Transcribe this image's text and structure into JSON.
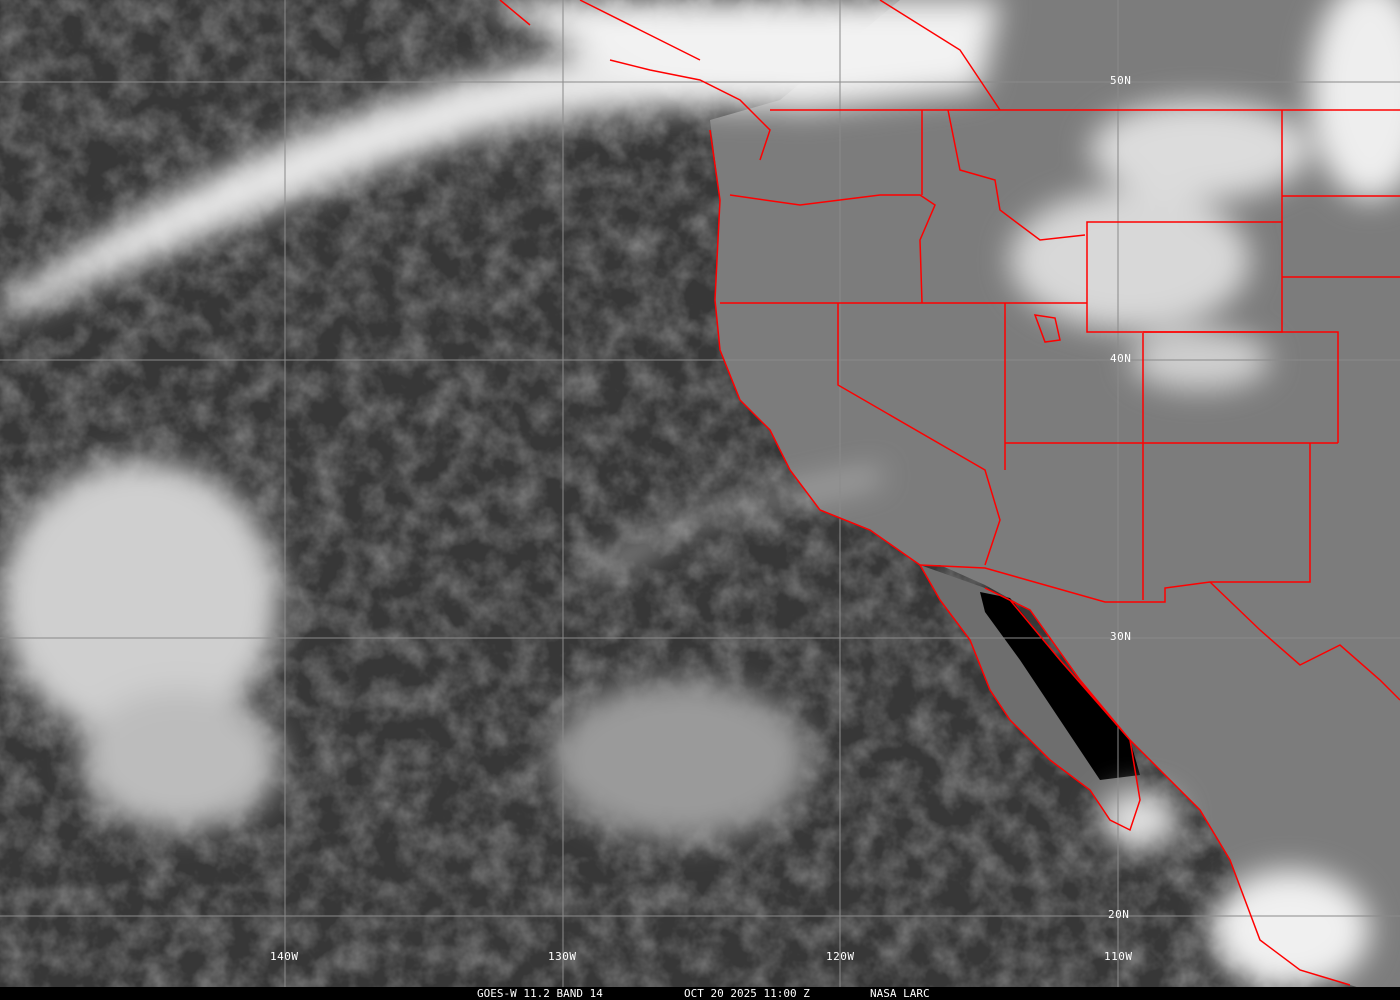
{
  "caption": {
    "satellite": "GOES-W 11.2 BAND 14",
    "datetime": "OCT 20 2025 11:00 Z",
    "source": "NASA LARC"
  },
  "grid": {
    "latitudes": [
      "50N",
      "40N",
      "30N",
      "20N"
    ],
    "longitudes": [
      "140W",
      "130W",
      "120W",
      "110W"
    ]
  },
  "colors": {
    "borders": "#ff0000",
    "gridlines": "#8a8a8a",
    "ocean": "#333333",
    "land": "#7a7a7a",
    "clouds": "#f0f0f0"
  }
}
